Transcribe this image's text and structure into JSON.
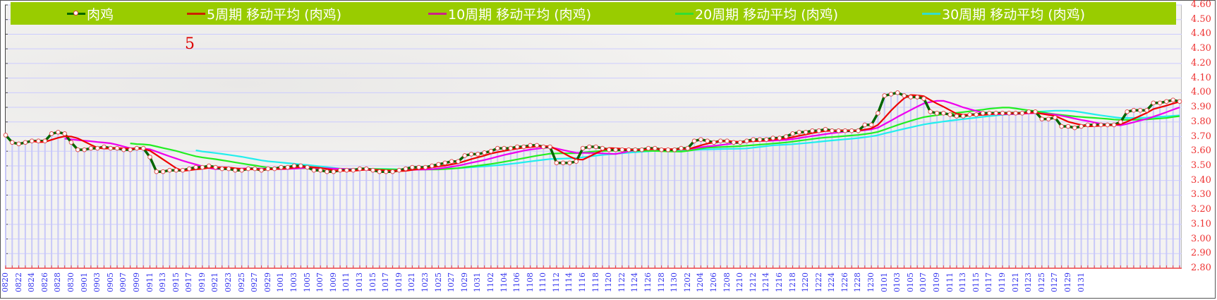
{
  "chart_data": {
    "type": "line",
    "title": "",
    "annotation": "5",
    "xlabel": "",
    "ylabel": "",
    "ylim": [
      2.8,
      4.6
    ],
    "y_ticks": [
      "4.60",
      "4.50",
      "4.40",
      "4.30",
      "4.20",
      "4.10",
      "4.00",
      "3.90",
      "3.80",
      "3.70",
      "3.60",
      "3.50",
      "3.40",
      "3.30",
      "3.20",
      "3.10",
      "3.00",
      "2.90",
      "2.80"
    ],
    "y_axis_position": "right",
    "grid": true,
    "legend_position": "top",
    "x_start": "0820",
    "x_end": "0131",
    "x_tick_labels": [
      "0820",
      "0822",
      "0824",
      "0826",
      "0828",
      "0830",
      "0901",
      "0903",
      "0905",
      "0907",
      "0909",
      "0911",
      "0913",
      "0915",
      "0917",
      "0919",
      "0921",
      "0923",
      "0925",
      "0927",
      "0929",
      "1001",
      "1003",
      "1005",
      "1007",
      "1009",
      "1011",
      "1013",
      "1015",
      "1017",
      "1019",
      "1021",
      "1023",
      "1025",
      "1027",
      "1029",
      "1031",
      "1102",
      "1104",
      "1106",
      "1108",
      "1110",
      "1112",
      "1114",
      "1116",
      "1118",
      "1120",
      "1122",
      "1124",
      "1126",
      "1128",
      "1130",
      "1202",
      "1204",
      "1206",
      "1208",
      "1210",
      "1212",
      "1214",
      "1216",
      "1218",
      "1220",
      "1222",
      "1224",
      "1226",
      "1228",
      "1230",
      "0101",
      "0103",
      "0105",
      "0107",
      "0109",
      "0111",
      "0113",
      "0115",
      "0117",
      "0119",
      "0121",
      "0123",
      "0125",
      "0127",
      "0129",
      "0131"
    ],
    "series": [
      {
        "name": "肉鸡",
        "color": "#006600",
        "marker": "circle",
        "values": [
          3.71,
          3.66,
          3.65,
          3.66,
          3.67,
          3.67,
          3.67,
          3.72,
          3.73,
          3.72,
          3.66,
          3.61,
          3.61,
          3.62,
          3.62,
          3.63,
          3.62,
          3.62,
          3.61,
          3.61,
          3.62,
          3.62,
          3.56,
          3.46,
          3.46,
          3.47,
          3.47,
          3.47,
          3.48,
          3.49,
          3.49,
          3.5,
          3.49,
          3.48,
          3.48,
          3.47,
          3.47,
          3.48,
          3.48,
          3.47,
          3.48,
          3.48,
          3.49,
          3.49,
          3.5,
          3.5,
          3.49,
          3.47,
          3.47,
          3.46,
          3.46,
          3.47,
          3.47,
          3.47,
          3.48,
          3.48,
          3.47,
          3.46,
          3.46,
          3.46,
          3.47,
          3.48,
          3.49,
          3.49,
          3.49,
          3.5,
          3.51,
          3.52,
          3.53,
          3.53,
          3.57,
          3.58,
          3.58,
          3.59,
          3.6,
          3.62,
          3.62,
          3.62,
          3.63,
          3.63,
          3.64,
          3.64,
          3.63,
          3.63,
          3.52,
          3.52,
          3.52,
          3.53,
          3.62,
          3.63,
          3.63,
          3.62,
          3.61,
          3.61,
          3.61,
          3.61,
          3.61,
          3.61,
          3.62,
          3.62,
          3.61,
          3.61,
          3.61,
          3.62,
          3.62,
          3.67,
          3.68,
          3.67,
          3.66,
          3.67,
          3.67,
          3.66,
          3.66,
          3.67,
          3.68,
          3.68,
          3.68,
          3.69,
          3.69,
          3.7,
          3.72,
          3.73,
          3.73,
          3.74,
          3.74,
          3.75,
          3.74,
          3.74,
          3.74,
          3.74,
          3.74,
          3.78,
          3.78,
          3.86,
          3.98,
          3.99,
          4.0,
          3.98,
          3.97,
          3.97,
          3.96,
          3.87,
          3.86,
          3.86,
          3.85,
          3.84,
          3.84,
          3.85,
          3.85,
          3.86,
          3.86,
          3.86,
          3.86,
          3.86,
          3.86,
          3.86,
          3.87,
          3.87,
          3.82,
          3.82,
          3.83,
          3.77,
          3.77,
          3.76,
          3.77,
          3.78,
          3.78,
          3.78,
          3.78,
          3.78,
          3.8,
          3.87,
          3.88,
          3.88,
          3.88,
          3.93,
          3.93,
          3.94,
          3.95,
          3.94
        ]
      },
      {
        "name": "5周期 移动平均 (肉鸡)",
        "color": "#ee0000",
        "period": 5
      },
      {
        "name": "10周期 移动平均 (肉鸡)",
        "color": "#ee00ee",
        "period": 10
      },
      {
        "name": "20周期 移动平均 (肉鸡)",
        "color": "#22ee22",
        "period": 20
      },
      {
        "name": "30周期 移动平均 (肉鸡)",
        "color": "#22eeee",
        "period": 30
      }
    ]
  },
  "legend": {
    "items": [
      {
        "label": "肉鸡",
        "color": "#006600"
      },
      {
        "label": "5周期 移动平均 (肉鸡)",
        "color": "#cc2200"
      },
      {
        "label": "10周期 移动平均 (肉鸡)",
        "color": "#cc2288"
      },
      {
        "label": "20周期 移动平均 (肉鸡)",
        "color": "#33dd33"
      },
      {
        "label": "30周期 移动平均 (肉鸡)",
        "color": "#33ddcc"
      }
    ]
  },
  "colors": {
    "legend_bg": "#99cc00",
    "y_tick_text": "#ee3333",
    "x_tick_text": "#3333ee",
    "grid_line": "#ccccff",
    "drop_line": "#c8c8f8",
    "x_axis": "#ee4444"
  }
}
